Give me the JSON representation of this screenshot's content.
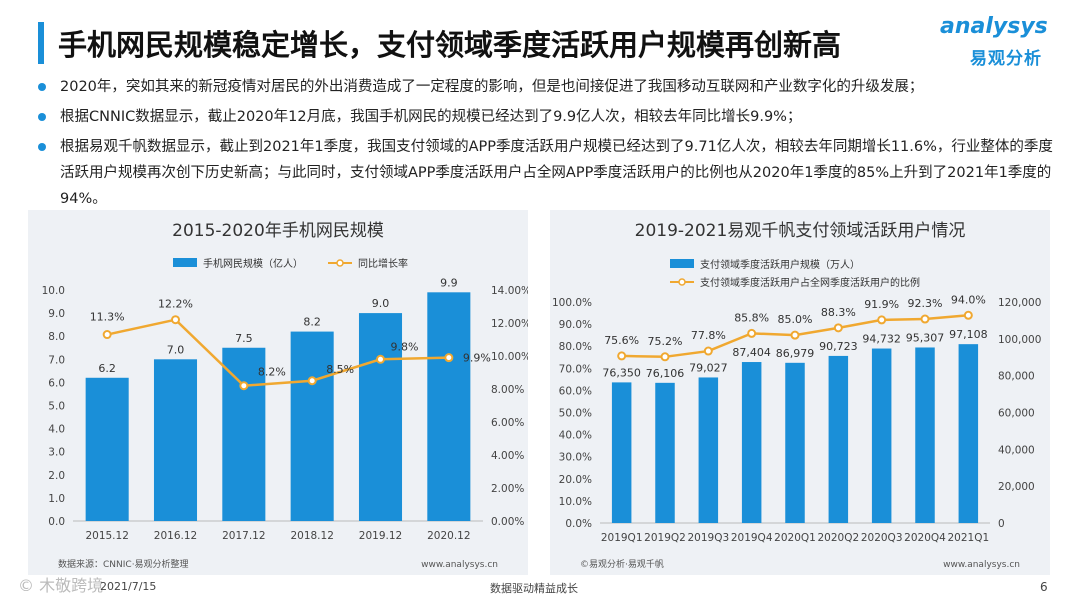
{
  "header": {
    "title": "手机网民规模稳定增长，支付领域季度活跃用户规模再创新高",
    "logo_en": "analysys",
    "logo_cn": "易观分析"
  },
  "bullets": [
    "2020年，突如其来的新冠疫情对居民的外出消费造成了一定程度的影响，但是也间接促进了我国移动互联网和产业数字化的升级发展；",
    "根据CNNIC数据显示，截止2020年12月底，我国手机网民的规模已经达到了9.9亿人次，相较去年同比增长9.9%；",
    "根据易观千帆数据显示，截止到2021年1季度，我国支付领域的APP季度活跃用户规模已经达到了9.71亿人次，相较去年同期增长11.6%，行业整体的季度活跃用户规模再次创下历史新高；与此同时，支付领域APP季度活跃用户占全网APP季度活跃用户的比例也从2020年1季度的85%上升到了2021年1季度的94%。"
  ],
  "colors": {
    "bar": "#1a8fd8",
    "line": "#f0a830",
    "accent": "#1a8fd8"
  },
  "chart_data": [
    {
      "type": "bar",
      "title": "2015-2020年手机网民规模",
      "categories": [
        "2015.12",
        "2016.12",
        "2017.12",
        "2018.12",
        "2019.12",
        "2020.12"
      ],
      "series": [
        {
          "name": "手机网民规模（亿人）",
          "type": "bar",
          "axis": "left",
          "values": [
            6.2,
            7.0,
            7.5,
            8.2,
            9.0,
            9.9
          ],
          "labels": [
            "6.2",
            "7.0",
            "7.5",
            "8.2",
            "9.0",
            "9.9"
          ]
        },
        {
          "name": "同比增长率",
          "type": "line",
          "axis": "right",
          "values": [
            11.3,
            12.2,
            8.2,
            8.5,
            9.8,
            9.9
          ],
          "labels": [
            "11.3%",
            "12.2%",
            "8.2%",
            "8.5%",
            "9.8%",
            "9.9%"
          ]
        }
      ],
      "left_axis": {
        "min": 0,
        "max": 10,
        "ticks": [
          "0.0",
          "1.0",
          "2.0",
          "3.0",
          "4.0",
          "5.0",
          "6.0",
          "7.0",
          "8.0",
          "9.0",
          "10.0"
        ]
      },
      "right_axis": {
        "min": 0,
        "max": 14,
        "ticks": [
          "0.00%",
          "2.00%",
          "4.00%",
          "6.00%",
          "8.00%",
          "10.00%",
          "12.00%",
          "14.00%"
        ]
      },
      "source": "数据来源：CNNIC·易观分析整理",
      "site": "www.analysys.cn"
    },
    {
      "type": "bar",
      "title": "2019-2021易观千帆支付领域活跃用户情况",
      "categories": [
        "2019Q1",
        "2019Q2",
        "2019Q3",
        "2019Q4",
        "2020Q1",
        "2020Q2",
        "2020Q3",
        "2020Q4",
        "2021Q1"
      ],
      "series": [
        {
          "name": "支付领域季度活跃用户规模（万人）",
          "type": "bar",
          "axis": "right",
          "values": [
            76350,
            76106,
            79027,
            87404,
            86979,
            90723,
            94732,
            95307,
            97108
          ],
          "labels": [
            "76,350",
            "76,106",
            "79,027",
            "87,404",
            "86,979",
            "90,723",
            "94,732",
            "95,307",
            "97,108"
          ]
        },
        {
          "name": "支付领域季度活跃用户占全网季度活跃用户的比例",
          "type": "line",
          "axis": "left",
          "values": [
            75.6,
            75.2,
            77.8,
            85.8,
            85.0,
            88.3,
            91.9,
            92.3,
            94.0
          ],
          "labels": [
            "75.6%",
            "75.2%",
            "77.8%",
            "85.8%",
            "85.0%",
            "88.3%",
            "91.9%",
            "92.3%",
            "94.0%"
          ]
        }
      ],
      "left_axis": {
        "min": 0,
        "max": 100,
        "ticks": [
          "0.0%",
          "10.0%",
          "20.0%",
          "30.0%",
          "40.0%",
          "50.0%",
          "60.0%",
          "70.0%",
          "80.0%",
          "90.0%",
          "100.0%"
        ]
      },
      "right_axis": {
        "min": 0,
        "max": 120000,
        "ticks": [
          "0",
          "20,000",
          "40,000",
          "60,000",
          "80,000",
          "100,000",
          "120,000"
        ]
      },
      "source": "©易观分析·易观千帆",
      "site": "www.analysys.cn"
    }
  ],
  "footer": {
    "date": "2021/7/15",
    "slogan": "数据驱动精益成长",
    "page": "6",
    "watermark": "© 木敬跨境"
  }
}
